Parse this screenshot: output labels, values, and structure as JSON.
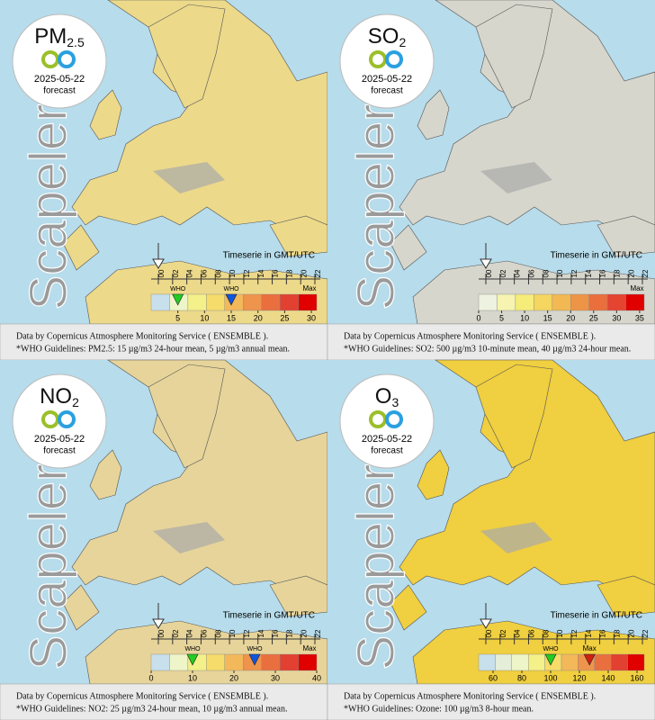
{
  "panels": [
    {
      "pollutant": "PM",
      "subscript": "2.5",
      "date": "2025-05-22",
      "status": "forecast",
      "brand": "Scapeler",
      "timeserie_label": "Timeserie in GMT/UTC",
      "hours": [
        "00",
        "02",
        "04",
        "06",
        "08",
        "10",
        "12",
        "14",
        "16",
        "18",
        "20",
        "22"
      ],
      "scale": {
        "lim": [
          0,
          31
        ],
        "ticks": [
          5,
          10,
          15,
          20,
          25,
          30
        ],
        "colors": [
          "#c8e0ec",
          "#eef5c8",
          "#f4f08a",
          "#f6dc6a",
          "#f3b85a",
          "#ee944c",
          "#ea6f3f",
          "#e24030",
          "#e00000"
        ],
        "max_label": "Max",
        "who": [
          {
            "label": "WHO",
            "value": 5,
            "color": "#22cc22"
          },
          {
            "label": "WHO",
            "value": 15,
            "color": "#1155dd"
          }
        ]
      },
      "caption": [
        "Data by Copernicus Atmosphere Monitoring Service ( ENSEMBLE ).",
        "*WHO Guidelines: PM2.5: 15 µg/m3 24-hour mean, 5 µg/m3 annual mean."
      ]
    },
    {
      "pollutant": "SO",
      "subscript": "2",
      "date": "2025-05-22",
      "status": "forecast",
      "brand": "Scapeler",
      "timeserie_label": "Timeserie in GMT/UTC",
      "hours": [
        "00",
        "02",
        "04",
        "06",
        "08",
        "10",
        "12",
        "14",
        "16",
        "18",
        "20",
        "22"
      ],
      "scale": {
        "lim": [
          0,
          36
        ],
        "ticks": [
          0,
          5,
          10,
          15,
          20,
          25,
          30,
          35
        ],
        "colors": [
          "#eef2e0",
          "#f6f4b0",
          "#f6ec7a",
          "#f4d660",
          "#f2b852",
          "#ee9446",
          "#ea6f3c",
          "#e44430",
          "#e00000"
        ],
        "max_label": "Max",
        "who": []
      },
      "caption": [
        "Data by Copernicus Atmosphere Monitoring Service ( ENSEMBLE ).",
        "*WHO Guidelines: SO2: 500 µg/m3 10-minute mean, 40 µg/m3 24-hour mean."
      ]
    },
    {
      "pollutant": "NO",
      "subscript": "2",
      "date": "2025-05-22",
      "status": "forecast",
      "brand": "Scapeler",
      "timeserie_label": "Timeserie in GMT/UTC",
      "hours": [
        "00",
        "02",
        "04",
        "06",
        "08",
        "10",
        "12",
        "14",
        "16",
        "18",
        "20",
        "22"
      ],
      "scale": {
        "lim": [
          0,
          40
        ],
        "ticks": [
          0,
          10,
          20,
          30,
          40
        ],
        "colors": [
          "#c8e0ec",
          "#eef5c8",
          "#f4f08a",
          "#f6dc6a",
          "#f3b85a",
          "#ee944c",
          "#ea6f3f",
          "#e24030",
          "#e00000"
        ],
        "max_label": "Max",
        "who": [
          {
            "label": "WHO",
            "value": 10,
            "color": "#22cc22"
          },
          {
            "label": "WHO",
            "value": 25,
            "color": "#1155dd"
          }
        ]
      },
      "caption": [
        "Data by Copernicus Atmosphere Monitoring Service ( ENSEMBLE ).",
        "*WHO Guidelines: NO2: 25 µg/m3 24-hour mean, 10 µg/m3 annual mean."
      ]
    },
    {
      "pollutant": "O",
      "subscript": "3",
      "date": "2025-05-22",
      "status": "forecast",
      "brand": "Scapeler",
      "timeserie_label": "Timeserie in GMT/UTC",
      "hours": [
        "00",
        "02",
        "04",
        "06",
        "08",
        "10",
        "12",
        "14",
        "16",
        "18",
        "20",
        "22"
      ],
      "scale": {
        "lim": [
          50,
          165
        ],
        "ticks": [
          60,
          80,
          100,
          120,
          140,
          160
        ],
        "colors": [
          "#c8e0ec",
          "#e4eed8",
          "#eef5c8",
          "#f4f08a",
          "#f6dc6a",
          "#f3b85a",
          "#ee944c",
          "#ea6f3f",
          "#e24030",
          "#e00000"
        ],
        "max_label": "Max",
        "max_value": 127,
        "who": [
          {
            "label": "WHO",
            "value": 100,
            "color": "#22cc22"
          }
        ]
      },
      "caption": [
        "Data by Copernicus Atmosphere Monitoring Service ( ENSEMBLE ).",
        "*WHO Guidelines: Ozone: 100 µg/m3 8-hour mean."
      ]
    }
  ]
}
